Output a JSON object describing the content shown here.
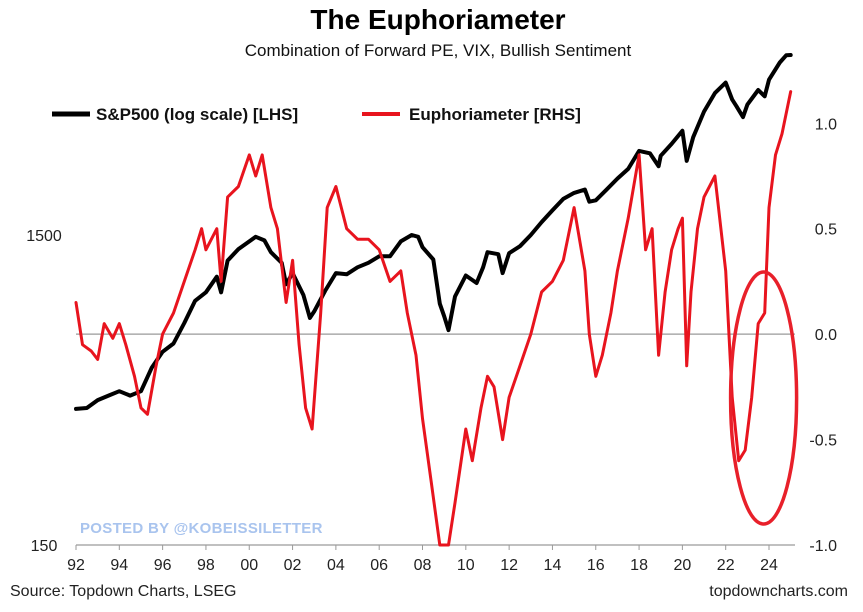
{
  "chart_data": {
    "type": "line",
    "title": "The Euphoriameter",
    "subtitle": "Combination of Forward PE, VIX, Bullish Sentiment",
    "x_tick_labels": [
      "92",
      "94",
      "96",
      "98",
      "00",
      "02",
      "04",
      "06",
      "08",
      "10",
      "12",
      "14",
      "16",
      "18",
      "20",
      "22",
      "24"
    ],
    "x_range": [
      1992,
      2025.2
    ],
    "y_left": {
      "scale": "log",
      "range": [
        150,
        5500
      ],
      "tick_labels": [
        {
          "value": 1500,
          "label": "1500"
        },
        {
          "value": 150,
          "label": "150"
        }
      ]
    },
    "y_right": {
      "scale": "linear",
      "range": [
        -1.0,
        1.3
      ],
      "tick_labels": [
        "1.0",
        "0.5",
        "0.0",
        "-0.5",
        "-1.0"
      ],
      "tick_values": [
        1.0,
        0.5,
        0.0,
        -0.5,
        -1.0
      ]
    },
    "zero_line": true,
    "highlight_ellipse": {
      "color": "#e8202a",
      "description": "circled recent Euphoriameter surge"
    },
    "series": [
      {
        "name": "S&P500 (log scale) [LHS]",
        "axis": "left",
        "color": "#000000",
        "points": [
          [
            1992.0,
            412
          ],
          [
            1992.5,
            415
          ],
          [
            1993.0,
            440
          ],
          [
            1993.5,
            455
          ],
          [
            1994.0,
            470
          ],
          [
            1994.5,
            455
          ],
          [
            1995.0,
            470
          ],
          [
            1995.5,
            560
          ],
          [
            1996.0,
            630
          ],
          [
            1996.5,
            670
          ],
          [
            1997.0,
            780
          ],
          [
            1997.5,
            920
          ],
          [
            1998.0,
            980
          ],
          [
            1998.5,
            1100
          ],
          [
            1998.7,
            980
          ],
          [
            1999.0,
            1240
          ],
          [
            1999.5,
            1350
          ],
          [
            2000.0,
            1430
          ],
          [
            2000.3,
            1480
          ],
          [
            2000.7,
            1440
          ],
          [
            2001.0,
            1320
          ],
          [
            2001.5,
            1220
          ],
          [
            2001.7,
            1040
          ],
          [
            2002.0,
            1130
          ],
          [
            2002.5,
            960
          ],
          [
            2002.8,
            810
          ],
          [
            2003.0,
            850
          ],
          [
            2003.5,
            990
          ],
          [
            2004.0,
            1130
          ],
          [
            2004.5,
            1120
          ],
          [
            2005.0,
            1180
          ],
          [
            2005.5,
            1220
          ],
          [
            2006.0,
            1280
          ],
          [
            2006.5,
            1280
          ],
          [
            2007.0,
            1430
          ],
          [
            2007.5,
            1500
          ],
          [
            2007.8,
            1480
          ],
          [
            2008.0,
            1370
          ],
          [
            2008.5,
            1250
          ],
          [
            2008.8,
            900
          ],
          [
            2009.0,
            820
          ],
          [
            2009.2,
            740
          ],
          [
            2009.5,
            950
          ],
          [
            2010.0,
            1110
          ],
          [
            2010.5,
            1050
          ],
          [
            2010.8,
            1180
          ],
          [
            2011.0,
            1320
          ],
          [
            2011.5,
            1300
          ],
          [
            2011.7,
            1130
          ],
          [
            2012.0,
            1310
          ],
          [
            2012.5,
            1380
          ],
          [
            2013.0,
            1500
          ],
          [
            2013.5,
            1650
          ],
          [
            2014.0,
            1800
          ],
          [
            2014.5,
            1960
          ],
          [
            2015.0,
            2050
          ],
          [
            2015.5,
            2100
          ],
          [
            2015.7,
            1920
          ],
          [
            2016.0,
            1940
          ],
          [
            2016.5,
            2100
          ],
          [
            2017.0,
            2280
          ],
          [
            2017.5,
            2450
          ],
          [
            2018.0,
            2800
          ],
          [
            2018.5,
            2750
          ],
          [
            2018.9,
            2500
          ],
          [
            2019.0,
            2700
          ],
          [
            2019.5,
            2950
          ],
          [
            2020.0,
            3250
          ],
          [
            2020.2,
            2600
          ],
          [
            2020.5,
            3100
          ],
          [
            2021.0,
            3750
          ],
          [
            2021.5,
            4300
          ],
          [
            2022.0,
            4650
          ],
          [
            2022.3,
            4100
          ],
          [
            2022.5,
            3900
          ],
          [
            2022.8,
            3600
          ],
          [
            2023.0,
            3950
          ],
          [
            2023.5,
            4400
          ],
          [
            2023.8,
            4200
          ],
          [
            2024.0,
            4750
          ],
          [
            2024.5,
            5400
          ],
          [
            2024.8,
            5700
          ],
          [
            2025.0,
            5950
          ]
        ]
      },
      {
        "name": "Euphoriameter [RHS]",
        "axis": "right",
        "color": "#e8141e",
        "points": [
          [
            1992.0,
            0.15
          ],
          [
            1992.3,
            -0.05
          ],
          [
            1992.7,
            -0.08
          ],
          [
            1993.0,
            -0.12
          ],
          [
            1993.3,
            0.05
          ],
          [
            1993.7,
            -0.02
          ],
          [
            1994.0,
            0.05
          ],
          [
            1994.3,
            -0.05
          ],
          [
            1994.7,
            -0.2
          ],
          [
            1995.0,
            -0.35
          ],
          [
            1995.3,
            -0.38
          ],
          [
            1995.7,
            -0.15
          ],
          [
            1996.0,
            0.0
          ],
          [
            1996.5,
            0.1
          ],
          [
            1997.0,
            0.25
          ],
          [
            1997.5,
            0.4
          ],
          [
            1997.8,
            0.5
          ],
          [
            1998.0,
            0.4
          ],
          [
            1998.5,
            0.5
          ],
          [
            1998.7,
            0.25
          ],
          [
            1999.0,
            0.65
          ],
          [
            1999.5,
            0.7
          ],
          [
            2000.0,
            0.85
          ],
          [
            2000.3,
            0.75
          ],
          [
            2000.6,
            0.85
          ],
          [
            2001.0,
            0.6
          ],
          [
            2001.3,
            0.5
          ],
          [
            2001.7,
            0.15
          ],
          [
            2002.0,
            0.35
          ],
          [
            2002.3,
            -0.05
          ],
          [
            2002.6,
            -0.35
          ],
          [
            2002.9,
            -0.45
          ],
          [
            2003.3,
            0.1
          ],
          [
            2003.6,
            0.6
          ],
          [
            2004.0,
            0.7
          ],
          [
            2004.5,
            0.5
          ],
          [
            2005.0,
            0.45
          ],
          [
            2005.5,
            0.45
          ],
          [
            2006.0,
            0.4
          ],
          [
            2006.5,
            0.25
          ],
          [
            2007.0,
            0.3
          ],
          [
            2007.3,
            0.1
          ],
          [
            2007.7,
            -0.1
          ],
          [
            2008.0,
            -0.4
          ],
          [
            2008.4,
            -0.7
          ],
          [
            2008.8,
            -1.0
          ],
          [
            2009.2,
            -1.05
          ],
          [
            2009.5,
            -0.8
          ],
          [
            2010.0,
            -0.45
          ],
          [
            2010.3,
            -0.6
          ],
          [
            2010.7,
            -0.35
          ],
          [
            2011.0,
            -0.2
          ],
          [
            2011.3,
            -0.25
          ],
          [
            2011.7,
            -0.5
          ],
          [
            2012.0,
            -0.3
          ],
          [
            2012.5,
            -0.15
          ],
          [
            2013.0,
            0.0
          ],
          [
            2013.5,
            0.2
          ],
          [
            2014.0,
            0.25
          ],
          [
            2014.5,
            0.35
          ],
          [
            2015.0,
            0.6
          ],
          [
            2015.5,
            0.3
          ],
          [
            2015.7,
            0.0
          ],
          [
            2016.0,
            -0.2
          ],
          [
            2016.3,
            -0.1
          ],
          [
            2016.7,
            0.1
          ],
          [
            2017.0,
            0.3
          ],
          [
            2017.5,
            0.55
          ],
          [
            2018.0,
            0.85
          ],
          [
            2018.3,
            0.4
          ],
          [
            2018.6,
            0.5
          ],
          [
            2018.9,
            -0.1
          ],
          [
            2019.2,
            0.2
          ],
          [
            2019.5,
            0.4
          ],
          [
            2019.8,
            0.5
          ],
          [
            2020.0,
            0.55
          ],
          [
            2020.2,
            -0.15
          ],
          [
            2020.4,
            0.2
          ],
          [
            2020.7,
            0.5
          ],
          [
            2021.0,
            0.65
          ],
          [
            2021.5,
            0.75
          ],
          [
            2022.0,
            0.3
          ],
          [
            2022.3,
            -0.3
          ],
          [
            2022.6,
            -0.6
          ],
          [
            2022.9,
            -0.55
          ],
          [
            2023.2,
            -0.3
          ],
          [
            2023.5,
            0.05
          ],
          [
            2023.8,
            0.1
          ],
          [
            2024.0,
            0.6
          ],
          [
            2024.3,
            0.85
          ],
          [
            2024.6,
            0.95
          ],
          [
            2024.9,
            1.1
          ],
          [
            2025.0,
            1.15
          ]
        ]
      }
    ]
  },
  "source_text": "Source: Topdown Charts, LSEG",
  "website_text": "topdowncharts.com",
  "watermark_text": "POSTED BY @KOBEISSILETTER"
}
